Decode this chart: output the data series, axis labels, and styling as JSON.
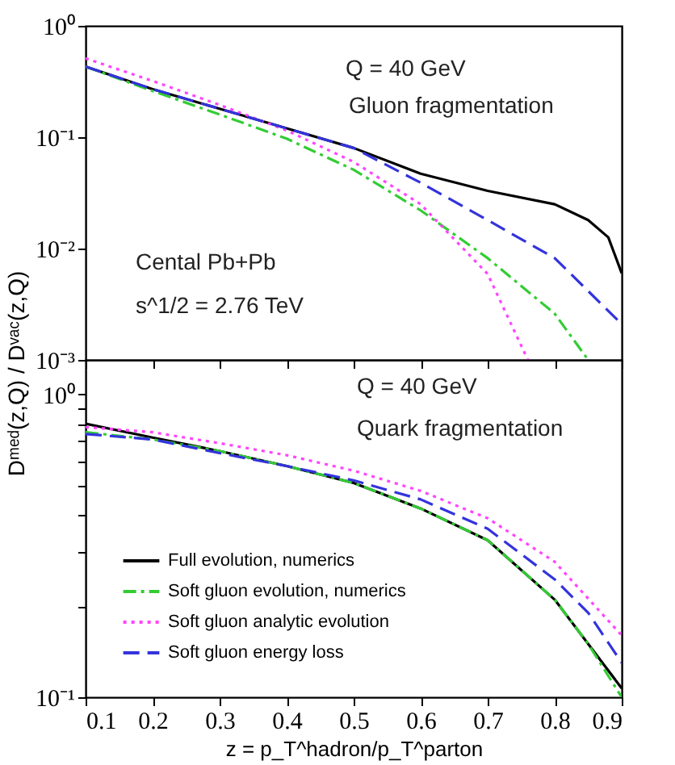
{
  "chart_data": [
    {
      "type": "line",
      "ylabel": "Dᵐᵉᵈ(z,Q) / Dᵛᵃᶜ(z,Q)",
      "log": true,
      "xlim": [
        0.1,
        0.9
      ],
      "ylim": [
        0.001,
        1
      ],
      "xticks": [
        0.1,
        0.2,
        0.3,
        0.4,
        0.5,
        0.6,
        0.7,
        0.8,
        0.9
      ],
      "yticks": [
        {
          "value": 0.001,
          "label": "10⁻³"
        },
        {
          "value": 0.01,
          "label": "10⁻²"
        },
        {
          "value": 0.1,
          "label": "10⁻¹"
        },
        {
          "value": 1,
          "label": "10⁰"
        }
      ],
      "tick_labels": "y",
      "grid": false,
      "legend": false,
      "annotations": [
        "Q = 40 GeV",
        "Gluon fragmentation",
        "Cental Pb+Pb",
        "s^1/2 = 2.76 TeV"
      ],
      "series": [
        {
          "color": "#000000",
          "line_style": "solid",
          "x": [
            0.1,
            0.2,
            0.3,
            0.4,
            0.5,
            0.6,
            0.7,
            0.8,
            0.85,
            0.88,
            0.9
          ],
          "values": [
            0.43,
            0.27,
            0.18,
            0.12,
            0.08,
            0.047,
            0.033,
            0.025,
            0.018,
            0.0126,
            0.006
          ]
        },
        {
          "color": "#33cc33",
          "line_style": "dashdot",
          "x": [
            0.1,
            0.2,
            0.3,
            0.4,
            0.5,
            0.6,
            0.7,
            0.8,
            0.85
          ],
          "values": [
            0.43,
            0.26,
            0.16,
            0.097,
            0.051,
            0.022,
            0.0082,
            0.0026,
            0.001
          ]
        },
        {
          "color": "#ff44ff",
          "line_style": "dotted",
          "x": [
            0.1,
            0.2,
            0.3,
            0.4,
            0.5,
            0.6,
            0.7,
            0.76
          ],
          "values": [
            0.51,
            0.32,
            0.195,
            0.115,
            0.06,
            0.025,
            0.0059,
            0.001
          ]
        },
        {
          "color": "#3333dd",
          "line_style": "dashed",
          "x": [
            0.1,
            0.2,
            0.3,
            0.4,
            0.5,
            0.6,
            0.7,
            0.8,
            0.9
          ],
          "values": [
            0.43,
            0.27,
            0.18,
            0.12,
            0.08,
            0.039,
            0.018,
            0.0082,
            0.0021
          ]
        }
      ]
    },
    {
      "type": "line",
      "xlabel": "z = p_T^hadron/p_T^parton",
      "log": true,
      "xlim": [
        0.1,
        0.9
      ],
      "ylim": [
        0.1,
        1.3
      ],
      "xticks": [
        0.1,
        0.2,
        0.3,
        0.4,
        0.5,
        0.6,
        0.7,
        0.8,
        0.9
      ],
      "yticks": [
        {
          "value": 0.1,
          "label": "10⁻¹"
        },
        {
          "value": 0.2,
          "label": null
        },
        {
          "value": 0.3,
          "label": null
        },
        {
          "value": 0.4,
          "label": null
        },
        {
          "value": 0.5,
          "label": null
        },
        {
          "value": 0.6,
          "label": null
        },
        {
          "value": 0.7,
          "label": null
        },
        {
          "value": 0.8,
          "label": null
        },
        {
          "value": 0.9,
          "label": null
        },
        {
          "value": 1,
          "label": "10⁰"
        }
      ],
      "grid": false,
      "legend": "bottom left",
      "annotations": [
        "Q = 40 GeV",
        "Quark fragmentation"
      ],
      "series": [
        {
          "name": "Full evolution, numerics",
          "color": "#000000",
          "line_style": "solid",
          "x": [
            0.1,
            0.2,
            0.3,
            0.4,
            0.5,
            0.6,
            0.7,
            0.8,
            0.85,
            0.9
          ],
          "values": [
            0.8,
            0.72,
            0.65,
            0.58,
            0.51,
            0.42,
            0.33,
            0.21,
            0.15,
            0.107
          ]
        },
        {
          "name": "Soft gluon evolution, numerics",
          "color": "#33cc33",
          "line_style": "dashdot",
          "x": [
            0.1,
            0.2,
            0.3,
            0.4,
            0.5,
            0.6,
            0.7,
            0.8,
            0.85,
            0.9
          ],
          "values": [
            0.75,
            0.71,
            0.65,
            0.58,
            0.51,
            0.42,
            0.33,
            0.21,
            0.15,
            0.1
          ]
        },
        {
          "name": "Soft gluon analytic evolution",
          "color": "#ff44ff",
          "line_style": "dotted",
          "x": [
            0.1,
            0.2,
            0.3,
            0.4,
            0.5,
            0.6,
            0.7,
            0.8,
            0.9
          ],
          "values": [
            0.78,
            0.75,
            0.69,
            0.63,
            0.56,
            0.48,
            0.39,
            0.28,
            0.16
          ]
        },
        {
          "name": "Soft gluon energy loss",
          "color": "#3333dd",
          "line_style": "dashed",
          "x": [
            0.1,
            0.2,
            0.3,
            0.4,
            0.5,
            0.6,
            0.7,
            0.8,
            0.85,
            0.9
          ],
          "values": [
            0.74,
            0.71,
            0.64,
            0.58,
            0.52,
            0.45,
            0.36,
            0.245,
            0.19,
            0.13
          ]
        }
      ]
    }
  ]
}
